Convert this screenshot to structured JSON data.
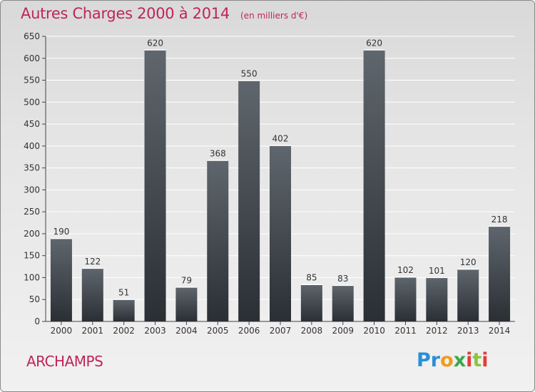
{
  "header": {
    "title": "Autres Charges 2000 à 2014",
    "unit": "(en milliers d'€)"
  },
  "footer": {
    "commune": "ARCHAMPS",
    "logo_text": "Proxiti"
  },
  "colors": {
    "title": "#c0245a",
    "bar_top": "#5f666d",
    "bar_bottom": "#2a2f34",
    "grid": "#ffffff"
  },
  "chart_data": {
    "type": "bar",
    "title": "Autres Charges 2000 à 2014",
    "ylabel": "",
    "xlabel": "",
    "ylim": [
      0,
      650
    ],
    "yticks": [
      0,
      50,
      100,
      150,
      200,
      250,
      300,
      350,
      400,
      450,
      500,
      550,
      600,
      650
    ],
    "grid": true,
    "categories": [
      "2000",
      "2001",
      "2002",
      "2003",
      "2004",
      "2005",
      "2006",
      "2007",
      "2008",
      "2009",
      "2010",
      "2011",
      "2012",
      "2013",
      "2014"
    ],
    "values": [
      190,
      122,
      51,
      620,
      79,
      368,
      550,
      402,
      85,
      83,
      620,
      102,
      101,
      120,
      218
    ]
  }
}
